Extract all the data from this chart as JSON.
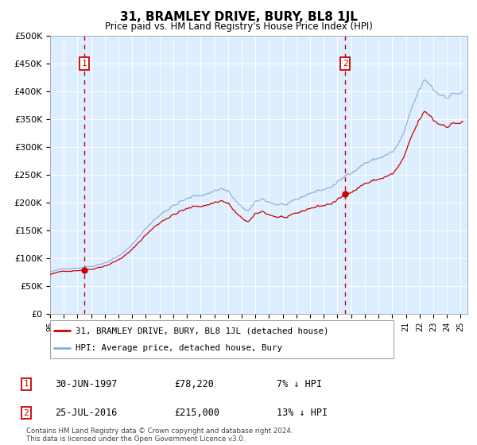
{
  "title": "31, BRAMLEY DRIVE, BURY, BL8 1JL",
  "subtitle": "Price paid vs. HM Land Registry's House Price Index (HPI)",
  "legend_line1": "31, BRAMLEY DRIVE, BURY, BL8 1JL (detached house)",
  "legend_line2": "HPI: Average price, detached house, Bury",
  "sale1_date_label": "30-JUN-1997",
  "sale1_price": 78220,
  "sale1_year": 1997.5,
  "sale1_pct": "7% ↓ HPI",
  "sale1_label": "1",
  "sale2_date_label": "25-JUL-2016",
  "sale2_price": 215000,
  "sale2_year": 2016.57,
  "sale2_pct": "13% ↓ HPI",
  "sale2_label": "2",
  "footer": "Contains HM Land Registry data © Crown copyright and database right 2024.\nThis data is licensed under the Open Government Licence v3.0.",
  "ylim": [
    0,
    500000
  ],
  "xlim_start": 1995.0,
  "xlim_end": 2025.5,
  "red_color": "#cc0000",
  "blue_color": "#88aadd",
  "plot_bg": "#ddeeff",
  "grid_color": "#ffffff",
  "dashed_color": "#cc0000",
  "box_color": "#cc0000",
  "yticks": [
    0,
    50000,
    100000,
    150000,
    200000,
    250000,
    300000,
    350000,
    400000,
    450000,
    500000
  ],
  "ytick_labels": [
    "£0",
    "£50K",
    "£100K",
    "£150K",
    "£200K",
    "£250K",
    "£300K",
    "£350K",
    "£400K",
    "£450K",
    "£500K"
  ]
}
